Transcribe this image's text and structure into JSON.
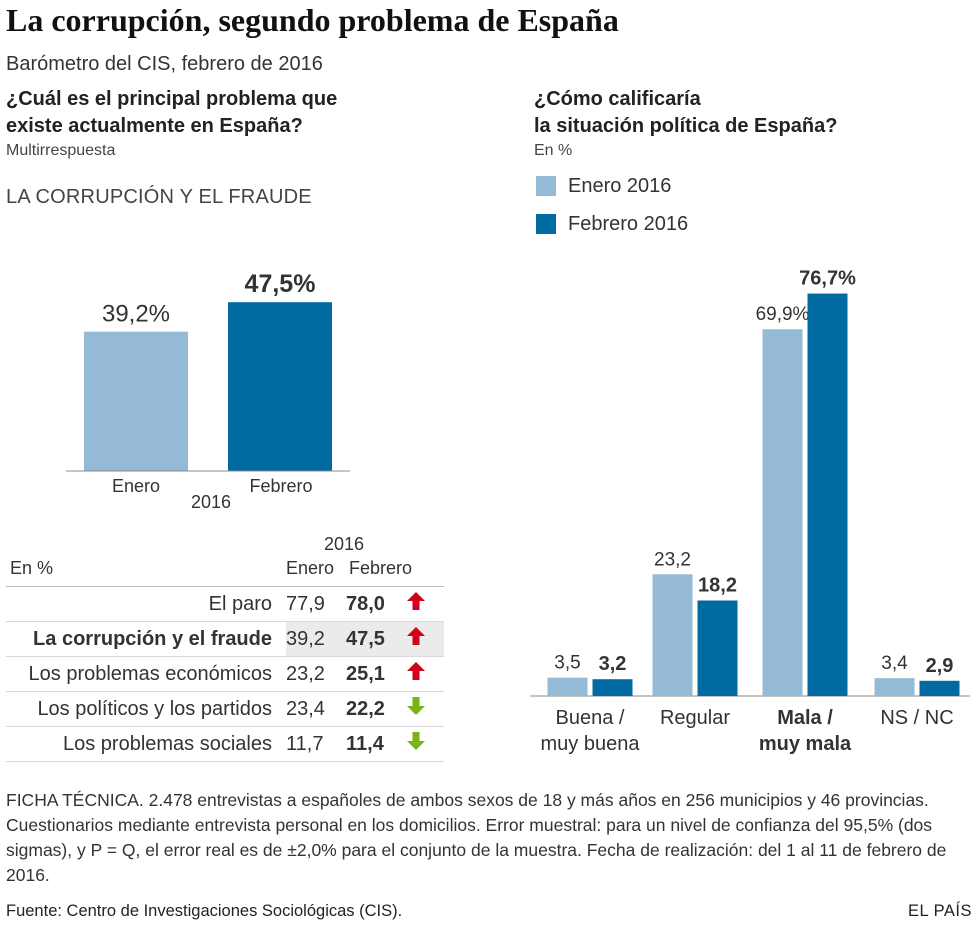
{
  "header": {
    "title": "La corrupción, segundo problema de España",
    "subtitle": "Barómetro del CIS, febrero de 2016"
  },
  "left": {
    "question_line1": "¿Cuál es el principal problema que",
    "question_line2": "existe actualmente en España?",
    "note": "Multirrespuesta",
    "section_label": "LA CORRUPCIÓN Y EL FRAUDE"
  },
  "right": {
    "question_line1": "¿Cómo calificaría",
    "question_line2": "la situación política de España?",
    "note": "En %",
    "legend": [
      {
        "label": "Enero 2016",
        "color": "#94bad6"
      },
      {
        "label": "Febrero 2016",
        "color": "#006ba2"
      }
    ]
  },
  "chart_data": [
    {
      "type": "bar",
      "title": "LA CORRUPCIÓN Y EL FRAUDE",
      "categories": [
        "Enero",
        "Febrero"
      ],
      "group_label": "2016",
      "values": [
        39.2,
        47.5
      ],
      "value_labels": [
        "39,2%",
        "47,5%"
      ],
      "colors": [
        "#94bad6",
        "#006ba2"
      ],
      "ylim": [
        0,
        65
      ]
    },
    {
      "type": "bar",
      "title": "¿Cómo calificaría la situación política de España?",
      "categories": [
        [
          "Buena /",
          "muy buena"
        ],
        [
          "Regular"
        ],
        [
          "Mala /",
          "muy mala"
        ],
        [
          "NS / NC"
        ]
      ],
      "highlight_category": 2,
      "series": [
        {
          "name": "Enero 2016",
          "values": [
            3.5,
            23.2,
            69.9,
            3.4
          ],
          "labels": [
            "3,5",
            "23,2",
            "69,9%",
            "3,4"
          ]
        },
        {
          "name": "Febrero 2016",
          "values": [
            3.2,
            18.2,
            76.7,
            2.9
          ],
          "labels": [
            "3,2",
            "18,2",
            "76,7%",
            "2,9"
          ]
        }
      ],
      "ylim": [
        0,
        85
      ]
    },
    {
      "type": "table",
      "unit_label": "En %",
      "year_label": "2016",
      "columns": [
        "Enero",
        "Febrero"
      ],
      "rows": [
        {
          "label": "El paro",
          "enero": "77,9",
          "febrero": "78,0",
          "trend": "up"
        },
        {
          "label": "La corrupción y el fraude",
          "enero": "39,2",
          "febrero": "47,5",
          "trend": "up",
          "highlight": true
        },
        {
          "label": "Los problemas económicos",
          "enero": "23,2",
          "febrero": "25,1",
          "trend": "up"
        },
        {
          "label": "Los políticos y los partidos",
          "enero": "23,4",
          "febrero": "22,2",
          "trend": "down"
        },
        {
          "label": "Los problemas sociales",
          "enero": "11,7",
          "febrero": "11,4",
          "trend": "down"
        }
      ]
    }
  ],
  "footer": {
    "ficha": "FICHA TÉCNICA. 2.478 entrevistas a españoles de ambos sexos de 18 y más años en 256 municipios y 46 provincias. Cuestionarios mediante entrevista personal en los domicilios. Error muestral: para un nivel de confianza del 95,5% (dos sigmas), y P = Q, el error real es de ±2,0% para el conjunto de la muestra. Fecha de realización: del 1 al 11 de febrero de 2016.",
    "source": "Fuente: Centro de Investigaciones Sociológicas (CIS).",
    "brand": "EL PAÍS"
  },
  "colors": {
    "enero": "#94bad6",
    "febrero": "#006ba2",
    "up_arrow": "#d0021b",
    "down_arrow": "#7ab317",
    "highlight_row": "#ebebeb"
  }
}
